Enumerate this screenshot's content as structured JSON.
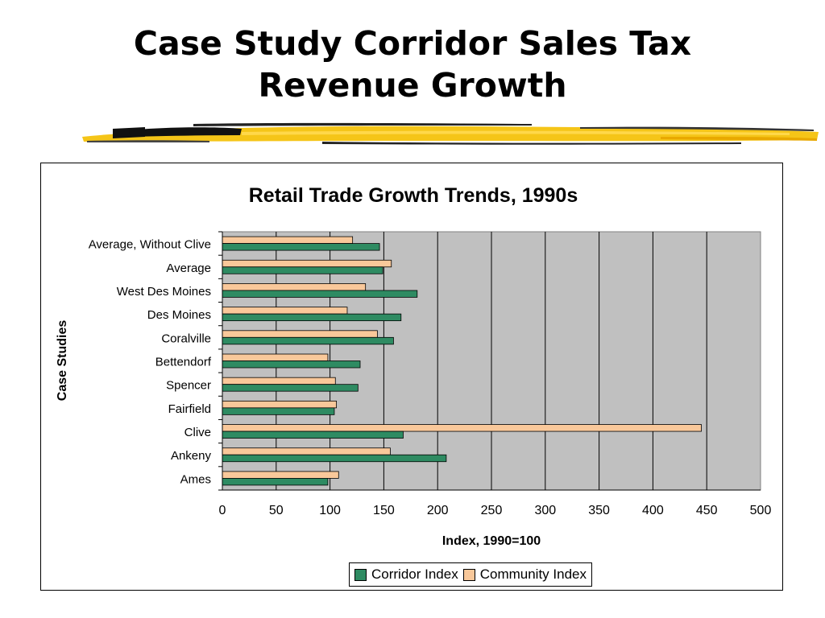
{
  "slide": {
    "title_line1": "Case Study Corridor Sales Tax",
    "title_line2": "Revenue Growth"
  },
  "colors": {
    "corridor": "#2e8b62",
    "community": "#f9c89a",
    "plot_bg": "#c0c0c0",
    "brush": "#f5c518"
  },
  "chart_data": {
    "type": "bar",
    "orientation": "horizontal",
    "title": "Retail Trade Growth Trends, 1990s",
    "xlabel": "Index, 1990=100",
    "ylabel": "Case Studies",
    "xlim": [
      0,
      500
    ],
    "xticks": [
      0,
      50,
      100,
      150,
      200,
      250,
      300,
      350,
      400,
      450,
      500
    ],
    "grid": true,
    "legend_position": "bottom",
    "categories": [
      "Average, Without Clive",
      "Average",
      "West Des Moines",
      "Des Moines",
      "Coralville",
      "Bettendorf",
      "Spencer",
      "Fairfield",
      "Clive",
      "Ankeny",
      "Ames"
    ],
    "series": [
      {
        "name": "Community Index",
        "values": [
          121,
          157,
          133,
          116,
          144,
          98,
          105,
          106,
          445,
          156,
          108
        ]
      },
      {
        "name": "Corridor Index",
        "values": [
          146,
          149,
          181,
          166,
          159,
          128,
          126,
          104,
          168,
          208,
          98
        ]
      }
    ],
    "legend": [
      "Corridor Index",
      "Community Index"
    ]
  }
}
